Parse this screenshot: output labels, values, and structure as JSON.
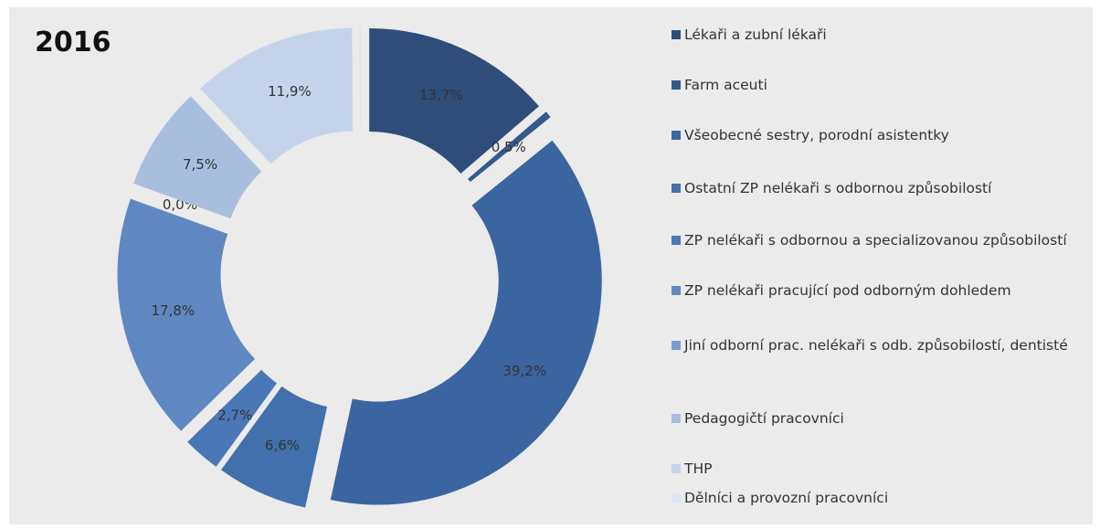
{
  "chart_data": {
    "type": "pie",
    "title": "2016",
    "categories": [
      "Lékaři a zubní lékaři",
      "Farm aceuti",
      "Všeobecné sestry, porodní asistentky",
      "Ostatní ZP nelékaři s odbornou způsobilostí",
      "ZP nelékaři s odbornou a specializovanou způsobilostí",
      "ZP nelékaři pracující pod odborným dohledem",
      "Jiní odborní prac. nelékaři s odb. způsobilostí, dentisté",
      "Pedagogičtí pracovníci",
      "THP",
      "Dělníci a provozní pracovníci"
    ],
    "values": [
      13.7,
      0.5,
      39.2,
      6.6,
      2.7,
      17.8,
      0.0,
      7.5,
      11.9,
      0.1
    ],
    "value_labels": [
      "13,7%",
      "0,5%",
      "39,2%",
      "6,6%",
      "2,7%",
      "17,8%",
      "0,0%",
      "7,5%",
      "11,9%",
      null
    ],
    "colors": [
      "#2e4d7b",
      "#34598e",
      "#3b65a0",
      "#4170ad",
      "#4a78b6",
      "#5f88c2",
      "#7a9ccd",
      "#a9bedf",
      "#c5d3ea",
      "#dce4f2"
    ]
  }
}
